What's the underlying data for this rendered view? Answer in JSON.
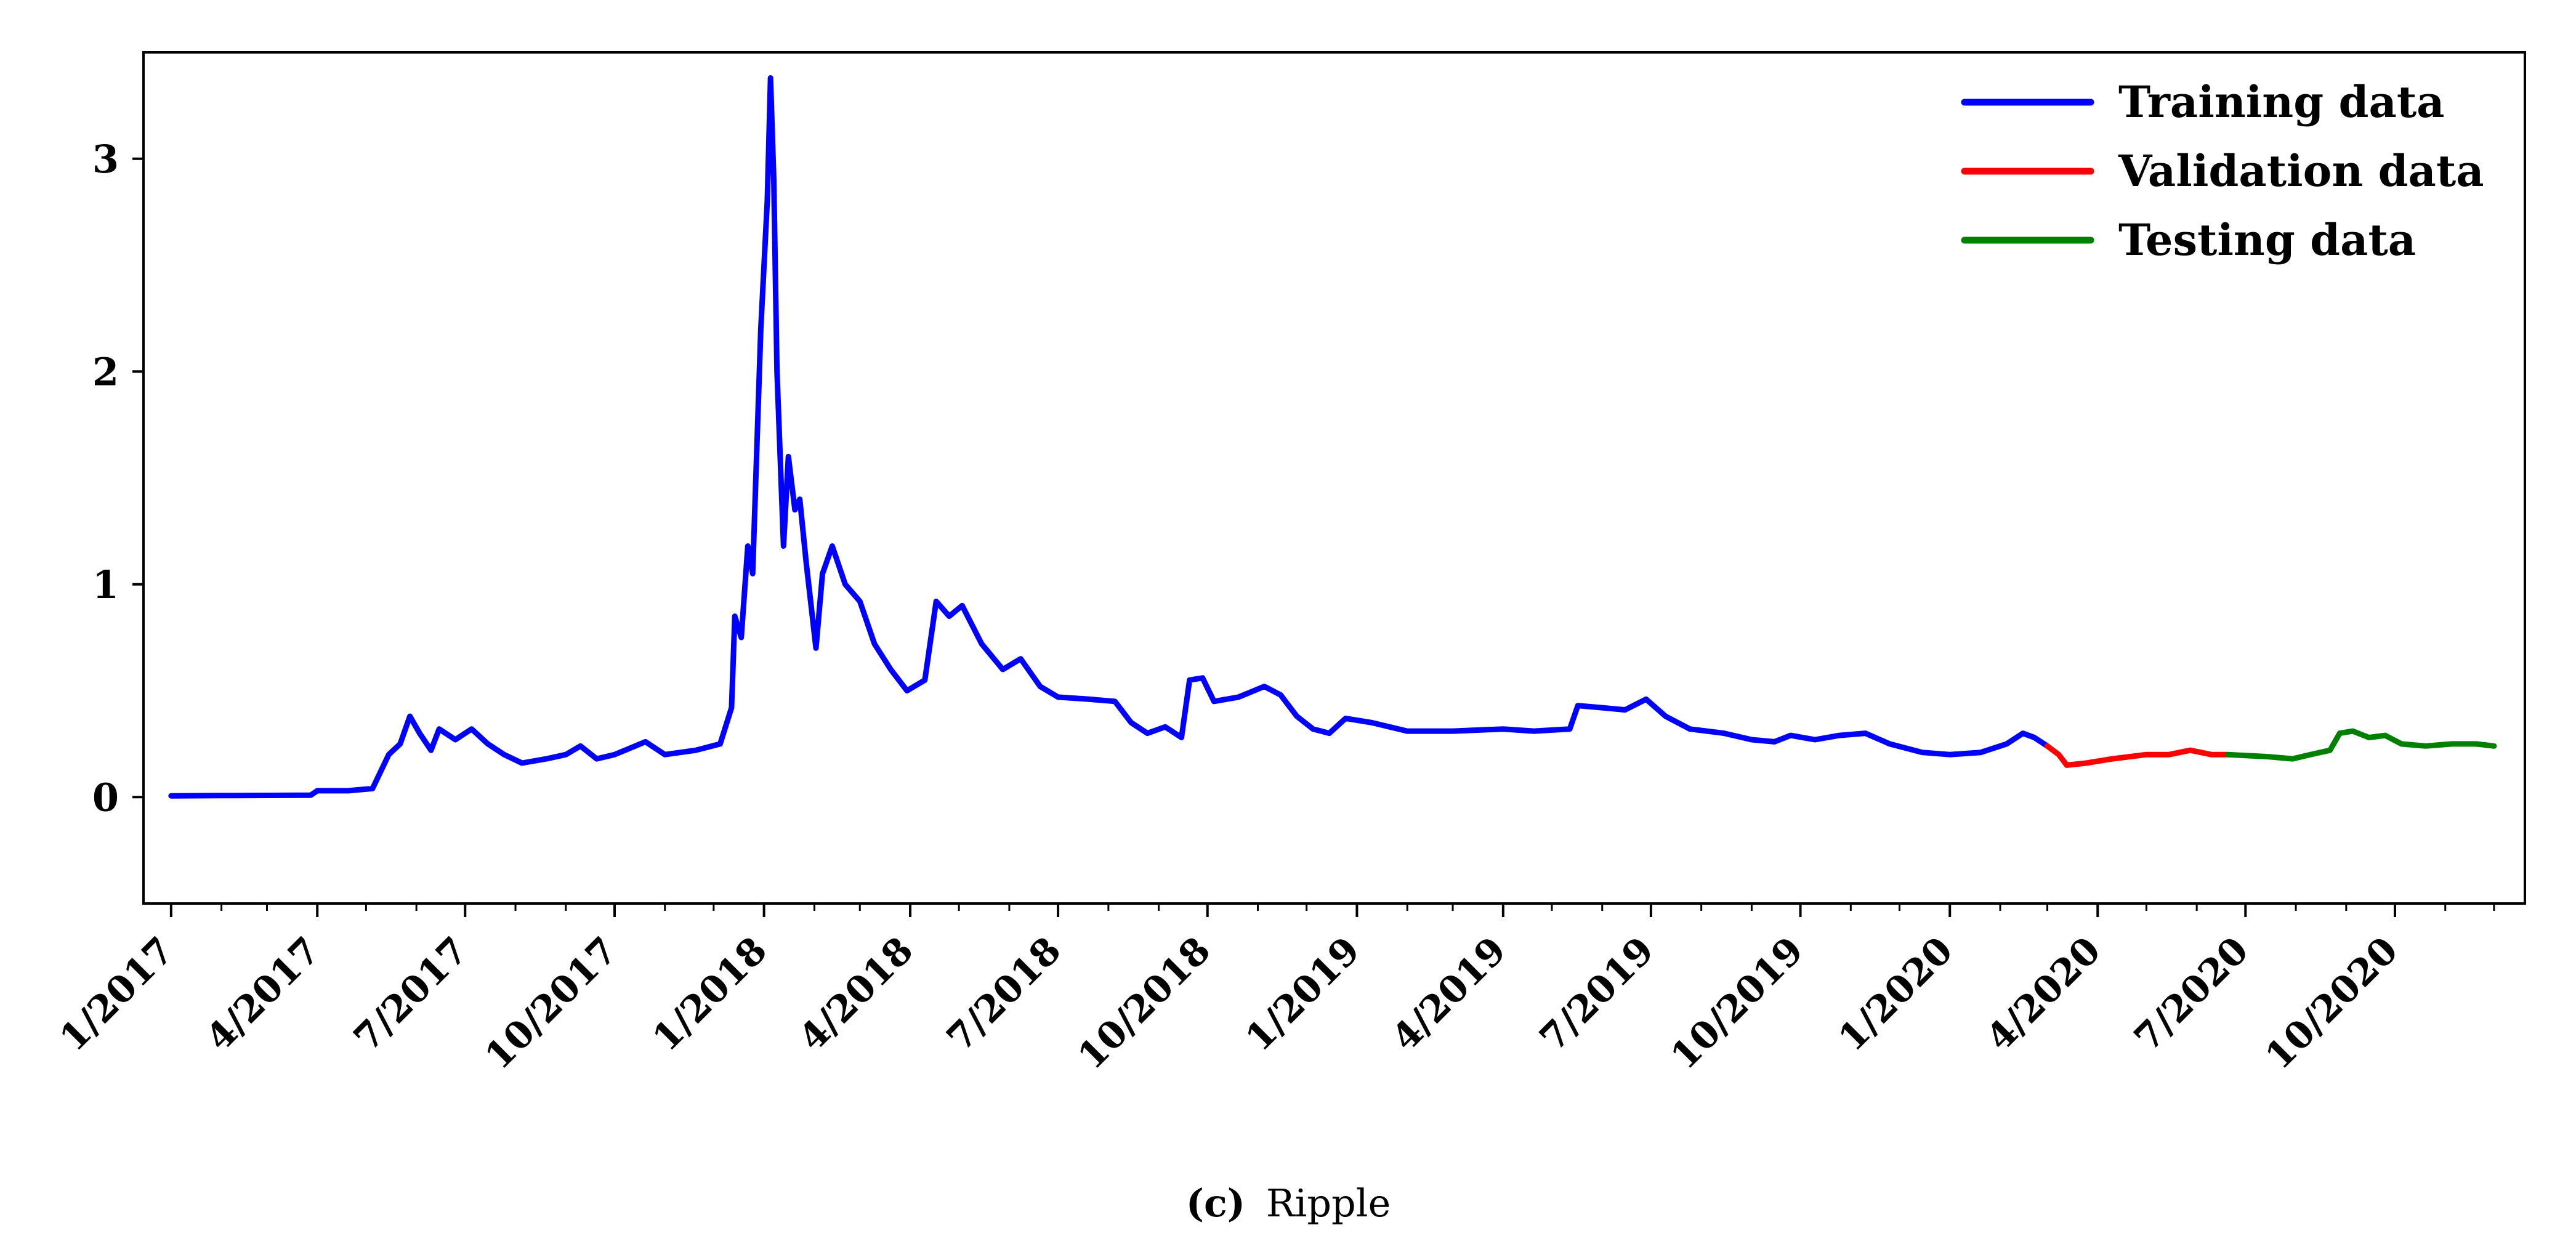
{
  "chart_data": {
    "type": "line",
    "title": "",
    "xlabel": "",
    "ylabel": "",
    "xlim": [
      "2016-12-15",
      "2020-12-20"
    ],
    "ylim": [
      -0.5,
      3.5
    ],
    "grid": false,
    "legend_position": "top-right",
    "y_ticks": [
      0,
      1,
      2,
      3
    ],
    "x_ticks": [
      {
        "date": "2017-01-01",
        "label": "1/2017"
      },
      {
        "date": "2017-04-01",
        "label": "4/2017"
      },
      {
        "date": "2017-07-01",
        "label": "7/2017"
      },
      {
        "date": "2017-10-01",
        "label": "10/2017"
      },
      {
        "date": "2018-01-01",
        "label": "1/2018"
      },
      {
        "date": "2018-04-01",
        "label": "4/2018"
      },
      {
        "date": "2018-07-01",
        "label": "7/2018"
      },
      {
        "date": "2018-10-01",
        "label": "10/2018"
      },
      {
        "date": "2019-01-01",
        "label": "1/2019"
      },
      {
        "date": "2019-04-01",
        "label": "4/2019"
      },
      {
        "date": "2019-07-01",
        "label": "7/2019"
      },
      {
        "date": "2019-10-01",
        "label": "10/2019"
      },
      {
        "date": "2020-01-01",
        "label": "1/2020"
      },
      {
        "date": "2020-04-01",
        "label": "4/2020"
      },
      {
        "date": "2020-07-01",
        "label": "7/2020"
      },
      {
        "date": "2020-10-01",
        "label": "10/2020"
      }
    ],
    "series": [
      {
        "name": "Training data",
        "color": "#0000ff",
        "points": [
          [
            "2017-01-01",
            0.006
          ],
          [
            "2017-02-01",
            0.007
          ],
          [
            "2017-03-01",
            0.008
          ],
          [
            "2017-03-28",
            0.009
          ],
          [
            "2017-04-01",
            0.03
          ],
          [
            "2017-04-20",
            0.03
          ],
          [
            "2017-05-05",
            0.04
          ],
          [
            "2017-05-15",
            0.2
          ],
          [
            "2017-05-22",
            0.25
          ],
          [
            "2017-05-28",
            0.38
          ],
          [
            "2017-06-03",
            0.3
          ],
          [
            "2017-06-10",
            0.22
          ],
          [
            "2017-06-15",
            0.32
          ],
          [
            "2017-06-25",
            0.27
          ],
          [
            "2017-07-05",
            0.32
          ],
          [
            "2017-07-15",
            0.25
          ],
          [
            "2017-07-25",
            0.2
          ],
          [
            "2017-08-05",
            0.16
          ],
          [
            "2017-08-20",
            0.18
          ],
          [
            "2017-09-01",
            0.2
          ],
          [
            "2017-09-10",
            0.24
          ],
          [
            "2017-09-20",
            0.18
          ],
          [
            "2017-10-01",
            0.2
          ],
          [
            "2017-10-20",
            0.26
          ],
          [
            "2017-11-01",
            0.2
          ],
          [
            "2017-11-20",
            0.22
          ],
          [
            "2017-12-05",
            0.25
          ],
          [
            "2017-12-12",
            0.42
          ],
          [
            "2017-12-14",
            0.85
          ],
          [
            "2017-12-18",
            0.75
          ],
          [
            "2017-12-22",
            1.18
          ],
          [
            "2017-12-25",
            1.05
          ],
          [
            "2017-12-30",
            2.2
          ],
          [
            "2018-01-03",
            2.8
          ],
          [
            "2018-01-05",
            3.38
          ],
          [
            "2018-01-07",
            2.9
          ],
          [
            "2018-01-09",
            2.0
          ],
          [
            "2018-01-13",
            1.18
          ],
          [
            "2018-01-16",
            1.6
          ],
          [
            "2018-01-20",
            1.35
          ],
          [
            "2018-01-23",
            1.4
          ],
          [
            "2018-01-27",
            1.1
          ],
          [
            "2018-02-02",
            0.7
          ],
          [
            "2018-02-06",
            1.05
          ],
          [
            "2018-02-12",
            1.18
          ],
          [
            "2018-02-20",
            1.0
          ],
          [
            "2018-03-01",
            0.92
          ],
          [
            "2018-03-10",
            0.72
          ],
          [
            "2018-03-20",
            0.6
          ],
          [
            "2018-03-30",
            0.5
          ],
          [
            "2018-04-10",
            0.55
          ],
          [
            "2018-04-17",
            0.92
          ],
          [
            "2018-04-25",
            0.85
          ],
          [
            "2018-05-03",
            0.9
          ],
          [
            "2018-05-15",
            0.72
          ],
          [
            "2018-05-28",
            0.6
          ],
          [
            "2018-06-08",
            0.65
          ],
          [
            "2018-06-20",
            0.52
          ],
          [
            "2018-07-01",
            0.47
          ],
          [
            "2018-07-20",
            0.46
          ],
          [
            "2018-08-05",
            0.45
          ],
          [
            "2018-08-15",
            0.35
          ],
          [
            "2018-08-25",
            0.3
          ],
          [
            "2018-09-05",
            0.33
          ],
          [
            "2018-09-15",
            0.28
          ],
          [
            "2018-09-20",
            0.55
          ],
          [
            "2018-09-28",
            0.56
          ],
          [
            "2018-10-05",
            0.45
          ],
          [
            "2018-10-20",
            0.47
          ],
          [
            "2018-11-05",
            0.52
          ],
          [
            "2018-11-15",
            0.48
          ],
          [
            "2018-11-25",
            0.38
          ],
          [
            "2018-12-05",
            0.32
          ],
          [
            "2018-12-15",
            0.3
          ],
          [
            "2018-12-25",
            0.37
          ],
          [
            "2019-01-10",
            0.35
          ],
          [
            "2019-02-01",
            0.31
          ],
          [
            "2019-03-01",
            0.31
          ],
          [
            "2019-04-01",
            0.32
          ],
          [
            "2019-04-20",
            0.31
          ],
          [
            "2019-05-12",
            0.32
          ],
          [
            "2019-05-17",
            0.43
          ],
          [
            "2019-06-01",
            0.42
          ],
          [
            "2019-06-15",
            0.41
          ],
          [
            "2019-06-28",
            0.46
          ],
          [
            "2019-07-10",
            0.38
          ],
          [
            "2019-07-25",
            0.32
          ],
          [
            "2019-08-15",
            0.3
          ],
          [
            "2019-09-01",
            0.27
          ],
          [
            "2019-09-15",
            0.26
          ],
          [
            "2019-09-25",
            0.29
          ],
          [
            "2019-10-10",
            0.27
          ],
          [
            "2019-10-25",
            0.29
          ],
          [
            "2019-11-10",
            0.3
          ],
          [
            "2019-11-25",
            0.25
          ],
          [
            "2019-12-15",
            0.21
          ],
          [
            "2020-01-01",
            0.2
          ],
          [
            "2020-01-20",
            0.21
          ],
          [
            "2020-02-05",
            0.25
          ],
          [
            "2020-02-15",
            0.3
          ],
          [
            "2020-02-22",
            0.28
          ],
          [
            "2020-03-01",
            0.24
          ]
        ]
      },
      {
        "name": "Validation data",
        "color": "#ff0000",
        "points": [
          [
            "2020-03-01",
            0.24
          ],
          [
            "2020-03-08",
            0.2
          ],
          [
            "2020-03-13",
            0.15
          ],
          [
            "2020-03-25",
            0.16
          ],
          [
            "2020-04-10",
            0.18
          ],
          [
            "2020-05-01",
            0.2
          ],
          [
            "2020-05-15",
            0.2
          ],
          [
            "2020-05-28",
            0.22
          ],
          [
            "2020-06-10",
            0.2
          ],
          [
            "2020-06-20",
            0.2
          ]
        ]
      },
      {
        "name": "Testing data",
        "color": "#008000",
        "points": [
          [
            "2020-06-20",
            0.2
          ],
          [
            "2020-07-15",
            0.19
          ],
          [
            "2020-07-30",
            0.18
          ],
          [
            "2020-08-10",
            0.2
          ],
          [
            "2020-08-22",
            0.22
          ],
          [
            "2020-08-28",
            0.3
          ],
          [
            "2020-09-05",
            0.31
          ],
          [
            "2020-09-15",
            0.28
          ],
          [
            "2020-09-25",
            0.29
          ],
          [
            "2020-10-05",
            0.25
          ],
          [
            "2020-10-20",
            0.24
          ],
          [
            "2020-11-05",
            0.25
          ],
          [
            "2020-11-20",
            0.25
          ],
          [
            "2020-12-01",
            0.24
          ]
        ]
      }
    ]
  },
  "caption": {
    "label": "(c)",
    "text": "Ripple"
  }
}
